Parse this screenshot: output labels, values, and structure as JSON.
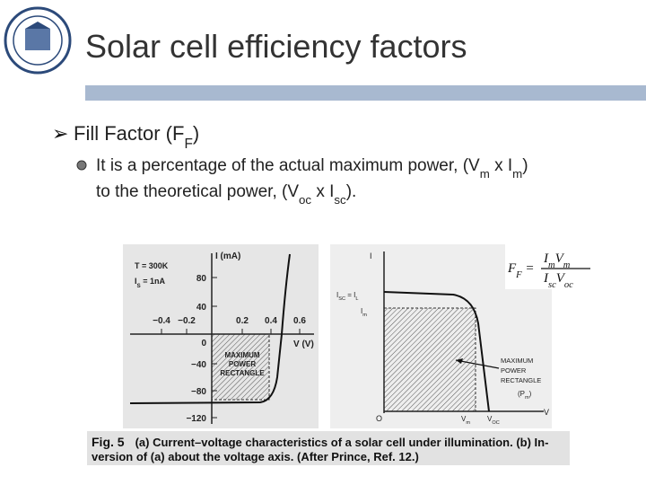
{
  "header": {
    "title": "Solar cell efficiency factors"
  },
  "bullet": {
    "parts": [
      "Fill Factor (F",
      "F",
      ")"
    ]
  },
  "sub_bullet": {
    "line1": [
      "It is a percentage of the actual maximum power, (V",
      "m",
      " x I",
      "m",
      ")"
    ],
    "line2": [
      "to the theoretical power, (V",
      "oc",
      " x I",
      "sc",
      ")."
    ]
  },
  "figure_a": {
    "temperature": "T = 300K",
    "saturation": [
      "I",
      "S",
      " = 1nA"
    ],
    "y_label": "I (mA)",
    "x_label": "V (V)",
    "y_ticks": [
      "80",
      "40",
      "0",
      "−40",
      "−80",
      "−120"
    ],
    "x_ticks": [
      "−0.4",
      "−0.2",
      "0.2",
      "0.4",
      "0.6"
    ],
    "rectangle_label": [
      "MAXIMUM",
      "POWER",
      "RECTANGLE"
    ]
  },
  "figure_b": {
    "y_label": "I",
    "isc": [
      "I",
      "SC",
      " = I",
      "L"
    ],
    "im": [
      "I",
      "m"
    ],
    "rectangle_label": [
      "MAXIMUM",
      "POWER",
      "RECTANGLE"
    ],
    "pm": [
      "(P",
      "m",
      ")"
    ],
    "origin": "O",
    "vm": [
      "V",
      "m"
    ],
    "voc": [
      "V",
      "OC"
    ],
    "x_label": "V"
  },
  "formula": {
    "lhs": [
      "F",
      "F",
      " ="
    ],
    "numerator": [
      "I",
      "m",
      "V",
      "m"
    ],
    "denominator": [
      "I",
      "sc",
      "V",
      "oc"
    ]
  },
  "caption": {
    "label": "Fig. 5",
    "line1": "(a) Current–voltage characteristics of a solar cell under illumination. (b) In-",
    "line2": "version of (a) about the voltage axis. (After Prince, Ref. 12.)"
  }
}
